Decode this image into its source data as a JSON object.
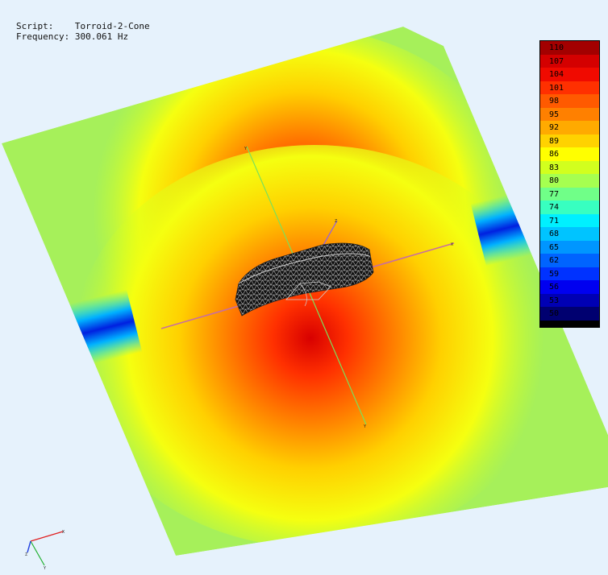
{
  "header": {
    "script_label": "Script:",
    "script_value": "Torroid-2-Cone",
    "frequency_label": "Frequency:",
    "frequency_value": "300.061 Hz"
  },
  "legend": {
    "ticks": [
      "110",
      "107",
      "104",
      "101",
      "98",
      "95",
      "92",
      "89",
      "86",
      "83",
      "80",
      "77",
      "74",
      "71",
      "68",
      "65",
      "62",
      "59",
      "56",
      "53",
      "50"
    ],
    "colors": [
      "#a30000",
      "#d40000",
      "#f00a00",
      "#ff3000",
      "#ff5a00",
      "#ff8000",
      "#ffaa00",
      "#ffd200",
      "#ffff00",
      "#d2ff1e",
      "#a6ff50",
      "#70ff88",
      "#38ffc0",
      "#00f0ff",
      "#00c4ff",
      "#0096ff",
      "#0064ff",
      "#0032ff",
      "#0000f0",
      "#0000b4",
      "#000070"
    ]
  },
  "axes": {
    "y_label": "Y",
    "x_label": "X",
    "z_label": "Z"
  },
  "colors": {
    "background": "#e6f2fc",
    "axis_y": "#7ce05a",
    "axis_x": "#c86ea0",
    "axis_z": "#8a5cf0"
  }
}
